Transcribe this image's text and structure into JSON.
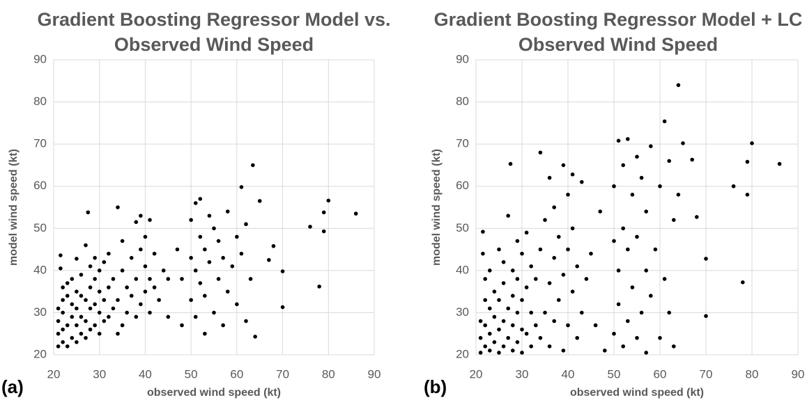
{
  "chart_data": [
    {
      "type": "scatter",
      "panel": "(a)",
      "title": [
        "Gradient Boosting Regressor Model vs.",
        "Observed Wind Speed"
      ],
      "x_label": "observed wind speed (kt)",
      "y_label": "model wind speed (kt)",
      "color": "#000000",
      "grid": true,
      "xlim": [
        20,
        90
      ],
      "ylim": [
        20,
        90
      ],
      "xticks": [
        20,
        30,
        40,
        50,
        60,
        70,
        80,
        90
      ],
      "yticks": [
        20,
        30,
        40,
        50,
        60,
        70,
        80,
        90
      ],
      "x": [
        21,
        21,
        21,
        21,
        21.5,
        21.5,
        22,
        22,
        22,
        22,
        22,
        23,
        23,
        23,
        23,
        24,
        24,
        24,
        24,
        25,
        25,
        25,
        25,
        25,
        26,
        26,
        26,
        26,
        27,
        27,
        27,
        27,
        28,
        28,
        28,
        28,
        29,
        29,
        29,
        29,
        30,
        30,
        30,
        30,
        31,
        31,
        31,
        32,
        32,
        32,
        33,
        33,
        34,
        34,
        35,
        35,
        35,
        36,
        36,
        37,
        37,
        38,
        38,
        38,
        39,
        39,
        39,
        40,
        40,
        40,
        41,
        41,
        41,
        42,
        42,
        43,
        44,
        45,
        45,
        47,
        48,
        48,
        50,
        50,
        50,
        51,
        51,
        51,
        52,
        52,
        52,
        53,
        53,
        53,
        54,
        54,
        55,
        55,
        56,
        56,
        57,
        57,
        58,
        58,
        59,
        60,
        60,
        61,
        61,
        62,
        62,
        63,
        63.5,
        64,
        65,
        27.5,
        34,
        67,
        68,
        70,
        70,
        76,
        78,
        79,
        79,
        80,
        86
      ],
      "values": [
        22,
        25,
        28,
        31,
        43.6,
        40.5,
        23,
        26,
        30,
        33,
        36,
        22,
        27,
        34,
        37,
        24,
        29,
        32,
        38,
        23,
        27,
        31,
        35,
        42.8,
        25,
        29,
        34,
        39,
        24,
        28,
        33,
        46,
        26,
        31,
        36,
        41,
        27,
        32,
        38,
        43,
        25,
        30,
        35,
        40,
        28,
        33,
        42,
        29,
        36,
        44,
        31,
        38,
        25,
        33,
        27,
        40,
        47,
        30,
        36,
        34,
        43,
        29,
        38,
        51.5,
        32,
        45,
        53,
        35,
        41,
        48,
        30,
        38,
        52,
        36,
        44,
        33,
        40,
        38,
        29,
        45,
        27,
        38,
        43,
        52,
        33,
        56,
        40,
        29,
        48,
        37,
        57,
        25,
        45,
        34,
        53,
        42,
        30,
        50,
        38,
        47,
        27,
        43,
        54,
        35,
        41,
        48,
        32,
        59.8,
        44,
        28,
        51,
        38,
        65,
        24.3,
        56.5,
        53.8,
        55,
        42.5,
        45.8,
        39.8,
        31.3,
        50.4,
        36.2,
        49.3,
        53.8,
        56.6,
        53.5
      ]
    },
    {
      "type": "scatter",
      "panel": "(b)",
      "title": [
        "Gradient Boosting Regressor Model + LC",
        "Observed Wind Speed"
      ],
      "x_label": "observed wind speed (kt)",
      "y_label": "model wind speed (kt)",
      "color": "#000000",
      "grid": true,
      "xlim": [
        20,
        90
      ],
      "ylim": [
        20,
        90
      ],
      "xticks": [
        20,
        30,
        40,
        50,
        60,
        70,
        80,
        90
      ],
      "yticks": [
        20,
        30,
        40,
        50,
        60,
        70,
        80,
        90
      ],
      "x": [
        21,
        21,
        21,
        21.5,
        21.5,
        22,
        22,
        22,
        22,
        23,
        23,
        23,
        23,
        24,
        24,
        24,
        25,
        25,
        25,
        25,
        26,
        26,
        26,
        26,
        27,
        27,
        27,
        27.5,
        28,
        28,
        28,
        28,
        29,
        29,
        29,
        29,
        30,
        30,
        30,
        30,
        31,
        31,
        31,
        32,
        32,
        32,
        33,
        33,
        34,
        34,
        34,
        35,
        35,
        36,
        36,
        36,
        37,
        37,
        37,
        38,
        38,
        39,
        39,
        39,
        40,
        40,
        40,
        41,
        41,
        41,
        42,
        42,
        43,
        43,
        44,
        45,
        46,
        47,
        48,
        50,
        50,
        50,
        51,
        51,
        51,
        52,
        52,
        52,
        53,
        53,
        53,
        54,
        54,
        55,
        55,
        55,
        56,
        56,
        57,
        57,
        57,
        58,
        58,
        59,
        60,
        60,
        61,
        61,
        62,
        62,
        63,
        63,
        64,
        64,
        65,
        67,
        68,
        70,
        70,
        76,
        78,
        79,
        79,
        80,
        86
      ],
      "values": [
        20.5,
        24,
        28,
        49.2,
        44,
        22,
        27,
        33,
        38,
        21,
        25,
        31,
        40,
        23,
        29,
        35,
        20.5,
        26,
        33,
        45,
        22,
        28,
        37,
        42,
        24,
        31,
        53,
        65.3,
        21,
        27,
        34,
        40,
        23,
        30,
        38,
        47,
        20.5,
        26,
        33,
        44,
        25,
        36,
        49,
        22,
        30,
        41,
        27,
        38,
        24,
        68,
        45,
        30,
        52,
        22,
        37,
        62,
        28,
        43,
        55,
        33,
        48,
        21,
        39,
        65,
        27,
        45,
        58,
        35,
        50,
        62.8,
        24,
        41,
        30,
        61,
        38,
        44,
        27,
        54,
        21,
        25,
        47,
        60,
        32,
        70.8,
        40,
        22,
        50,
        65,
        28,
        71.2,
        45,
        36,
        58,
        24,
        67,
        48,
        30,
        62,
        20.5,
        40,
        54,
        69.5,
        34,
        45,
        24,
        60,
        75.4,
        38,
        30,
        66,
        22,
        52,
        84,
        58,
        70.2,
        66.3,
        52.7,
        42.8,
        29.2,
        60,
        37.2,
        58,
        65.8,
        70.2,
        65.3
      ]
    }
  ]
}
